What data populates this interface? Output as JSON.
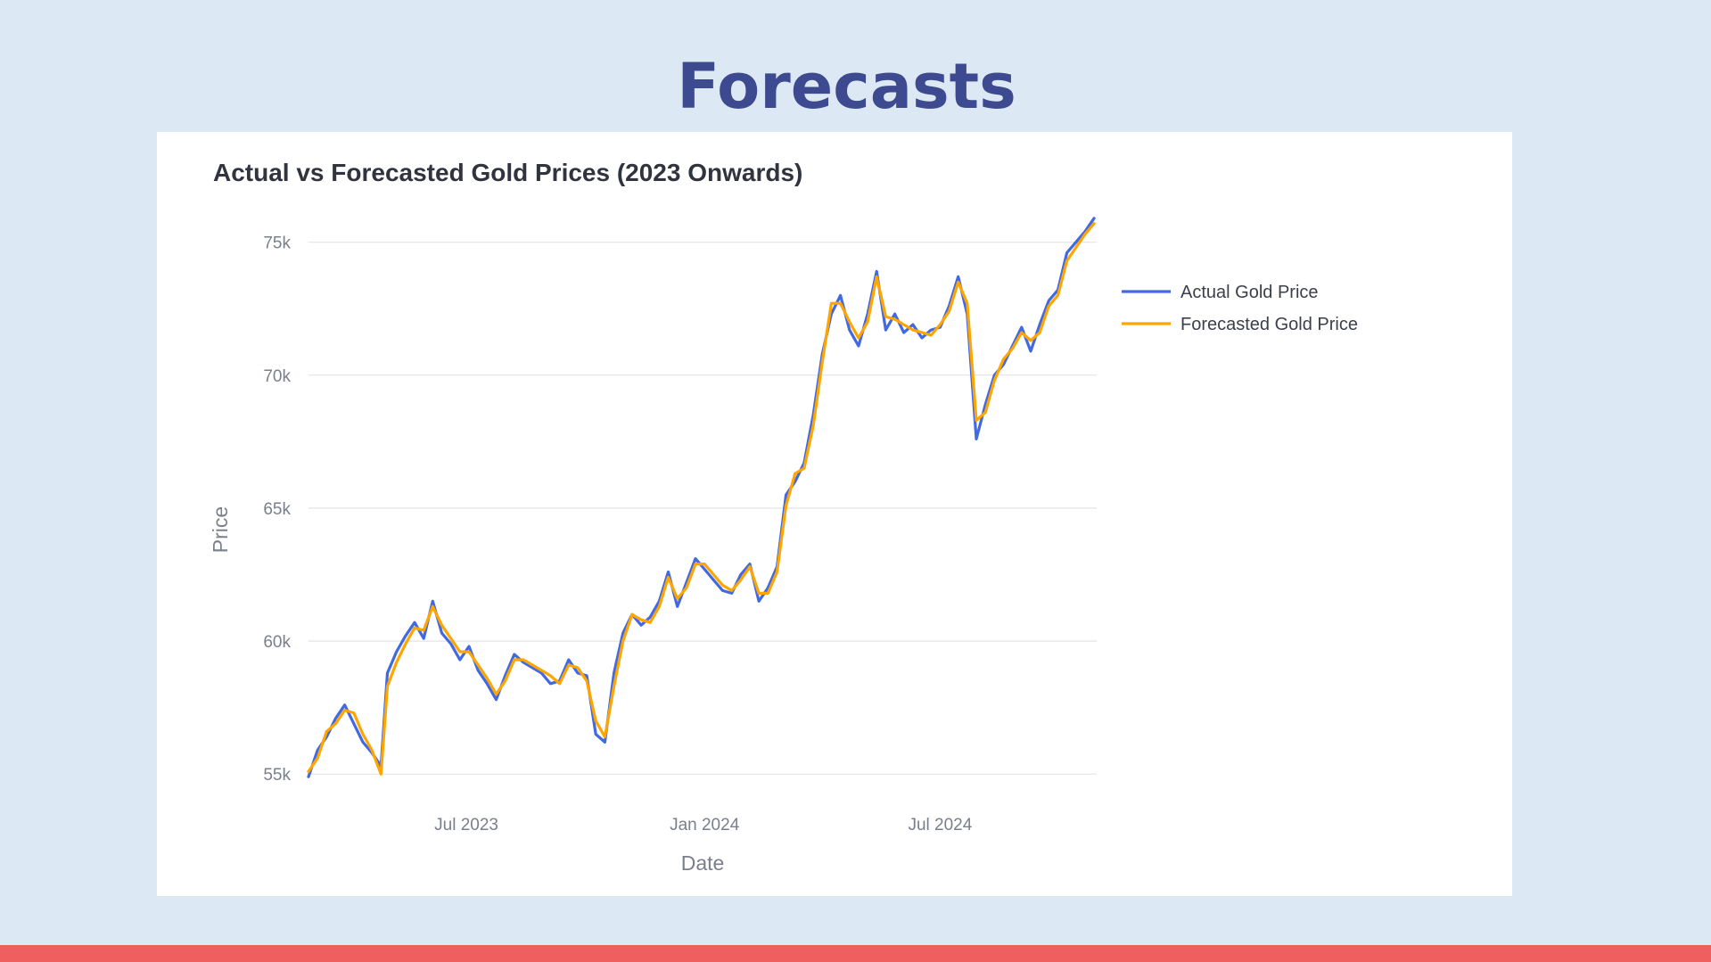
{
  "slide": {
    "title": "Forecasts"
  },
  "colors": {
    "background": "#dce9f5",
    "title": "#3d4a8f",
    "card": "#ffffff",
    "footer": "#f05f5f",
    "actual": "#4169e1",
    "forecast": "#ffa500",
    "grid": "#e6e6e6",
    "axis_text": "#7a7f8c"
  },
  "chart_data": {
    "type": "line",
    "title": "Actual vs Forecasted Gold Prices (2023 Onwards)",
    "xlabel": "Date",
    "ylabel": "Price",
    "xlim": [
      "2023-03-01",
      "2024-10-30"
    ],
    "ylim": [
      53600,
      77300
    ],
    "grid": true,
    "legend_position": "top-right",
    "x_ticks": [
      {
        "date": "2023-07-01",
        "label": "Jul 2023"
      },
      {
        "date": "2024-01-01",
        "label": "Jan 2024"
      },
      {
        "date": "2024-07-01",
        "label": "Jul 2024"
      }
    ],
    "y_ticks": [
      {
        "value": 55000,
        "label": "55k"
      },
      {
        "value": 60000,
        "label": "60k"
      },
      {
        "value": 65000,
        "label": "65k"
      },
      {
        "value": 70000,
        "label": "70k"
      },
      {
        "value": 75000,
        "label": "75k"
      }
    ],
    "x": [
      "2023-03-01",
      "2023-03-08",
      "2023-03-15",
      "2023-03-22",
      "2023-03-29",
      "2023-04-05",
      "2023-04-12",
      "2023-04-19",
      "2023-04-26",
      "2023-05-01",
      "2023-05-08",
      "2023-05-15",
      "2023-05-22",
      "2023-05-29",
      "2023-06-05",
      "2023-06-12",
      "2023-06-19",
      "2023-06-26",
      "2023-07-03",
      "2023-07-10",
      "2023-07-17",
      "2023-07-24",
      "2023-07-31",
      "2023-08-07",
      "2023-08-14",
      "2023-08-21",
      "2023-08-28",
      "2023-09-04",
      "2023-09-11",
      "2023-09-18",
      "2023-09-25",
      "2023-10-02",
      "2023-10-09",
      "2023-10-16",
      "2023-10-23",
      "2023-10-30",
      "2023-11-06",
      "2023-11-13",
      "2023-11-20",
      "2023-11-27",
      "2023-12-04",
      "2023-12-11",
      "2023-12-18",
      "2023-12-25",
      "2024-01-01",
      "2024-01-08",
      "2024-01-15",
      "2024-01-22",
      "2024-01-29",
      "2024-02-05",
      "2024-02-12",
      "2024-02-19",
      "2024-02-26",
      "2024-03-04",
      "2024-03-11",
      "2024-03-18",
      "2024-03-25",
      "2024-04-01",
      "2024-04-08",
      "2024-04-15",
      "2024-04-22",
      "2024-04-29",
      "2024-05-06",
      "2024-05-13",
      "2024-05-20",
      "2024-05-27",
      "2024-06-03",
      "2024-06-10",
      "2024-06-17",
      "2024-06-24",
      "2024-07-01",
      "2024-07-08",
      "2024-07-15",
      "2024-07-22",
      "2024-07-29",
      "2024-08-05",
      "2024-08-12",
      "2024-08-19",
      "2024-08-26",
      "2024-09-02",
      "2024-09-09",
      "2024-09-16",
      "2024-09-23",
      "2024-09-30",
      "2024-10-07",
      "2024-10-14",
      "2024-10-21",
      "2024-10-28"
    ],
    "series": [
      {
        "name": "Actual Gold Price",
        "values": [
          54900,
          55900,
          56400,
          57100,
          57600,
          56900,
          56200,
          55800,
          55300,
          58800,
          59600,
          60200,
          60700,
          60100,
          61500,
          60300,
          59900,
          59300,
          59800,
          58900,
          58400,
          57800,
          58700,
          59500,
          59200,
          59000,
          58800,
          58400,
          58500,
          59300,
          58800,
          58700,
          56500,
          56200,
          58800,
          60300,
          61000,
          60600,
          60900,
          61500,
          62600,
          61300,
          62200,
          63100,
          62700,
          62300,
          61900,
          61800,
          62500,
          62900,
          61500,
          62000,
          62800,
          65500,
          66000,
          66700,
          68500,
          70800,
          72300,
          73000,
          71700,
          71100,
          72300,
          73900,
          71700,
          72300,
          71600,
          71900,
          71400,
          71700,
          71800,
          72600,
          73700,
          72300,
          67600,
          68900,
          70000,
          70400,
          71100,
          71800,
          70900,
          71900,
          72800,
          73200,
          74600,
          75000,
          75400,
          75900
        ]
      },
      {
        "name": "Forecasted Gold Price",
        "values": [
          55100,
          55600,
          56600,
          56900,
          57400,
          57300,
          56500,
          55900,
          55000,
          58300,
          59200,
          59900,
          60500,
          60400,
          61300,
          60600,
          60100,
          59600,
          59600,
          59100,
          58600,
          58000,
          58500,
          59300,
          59300,
          59100,
          58900,
          58700,
          58400,
          59100,
          59000,
          58500,
          57000,
          56400,
          58300,
          60000,
          61000,
          60800,
          60700,
          61300,
          62400,
          61600,
          62000,
          62900,
          62900,
          62500,
          62100,
          61900,
          62300,
          62800,
          61800,
          61800,
          62600,
          65100,
          66300,
          66500,
          68100,
          70500,
          72700,
          72700,
          72000,
          71400,
          72000,
          73700,
          72200,
          72100,
          71900,
          71700,
          71600,
          71500,
          71900,
          72400,
          73500,
          72700,
          68300,
          68600,
          69800,
          70600,
          71000,
          71600,
          71300,
          71600,
          72600,
          73000,
          74300,
          74800,
          75300,
          75700
        ]
      }
    ]
  }
}
